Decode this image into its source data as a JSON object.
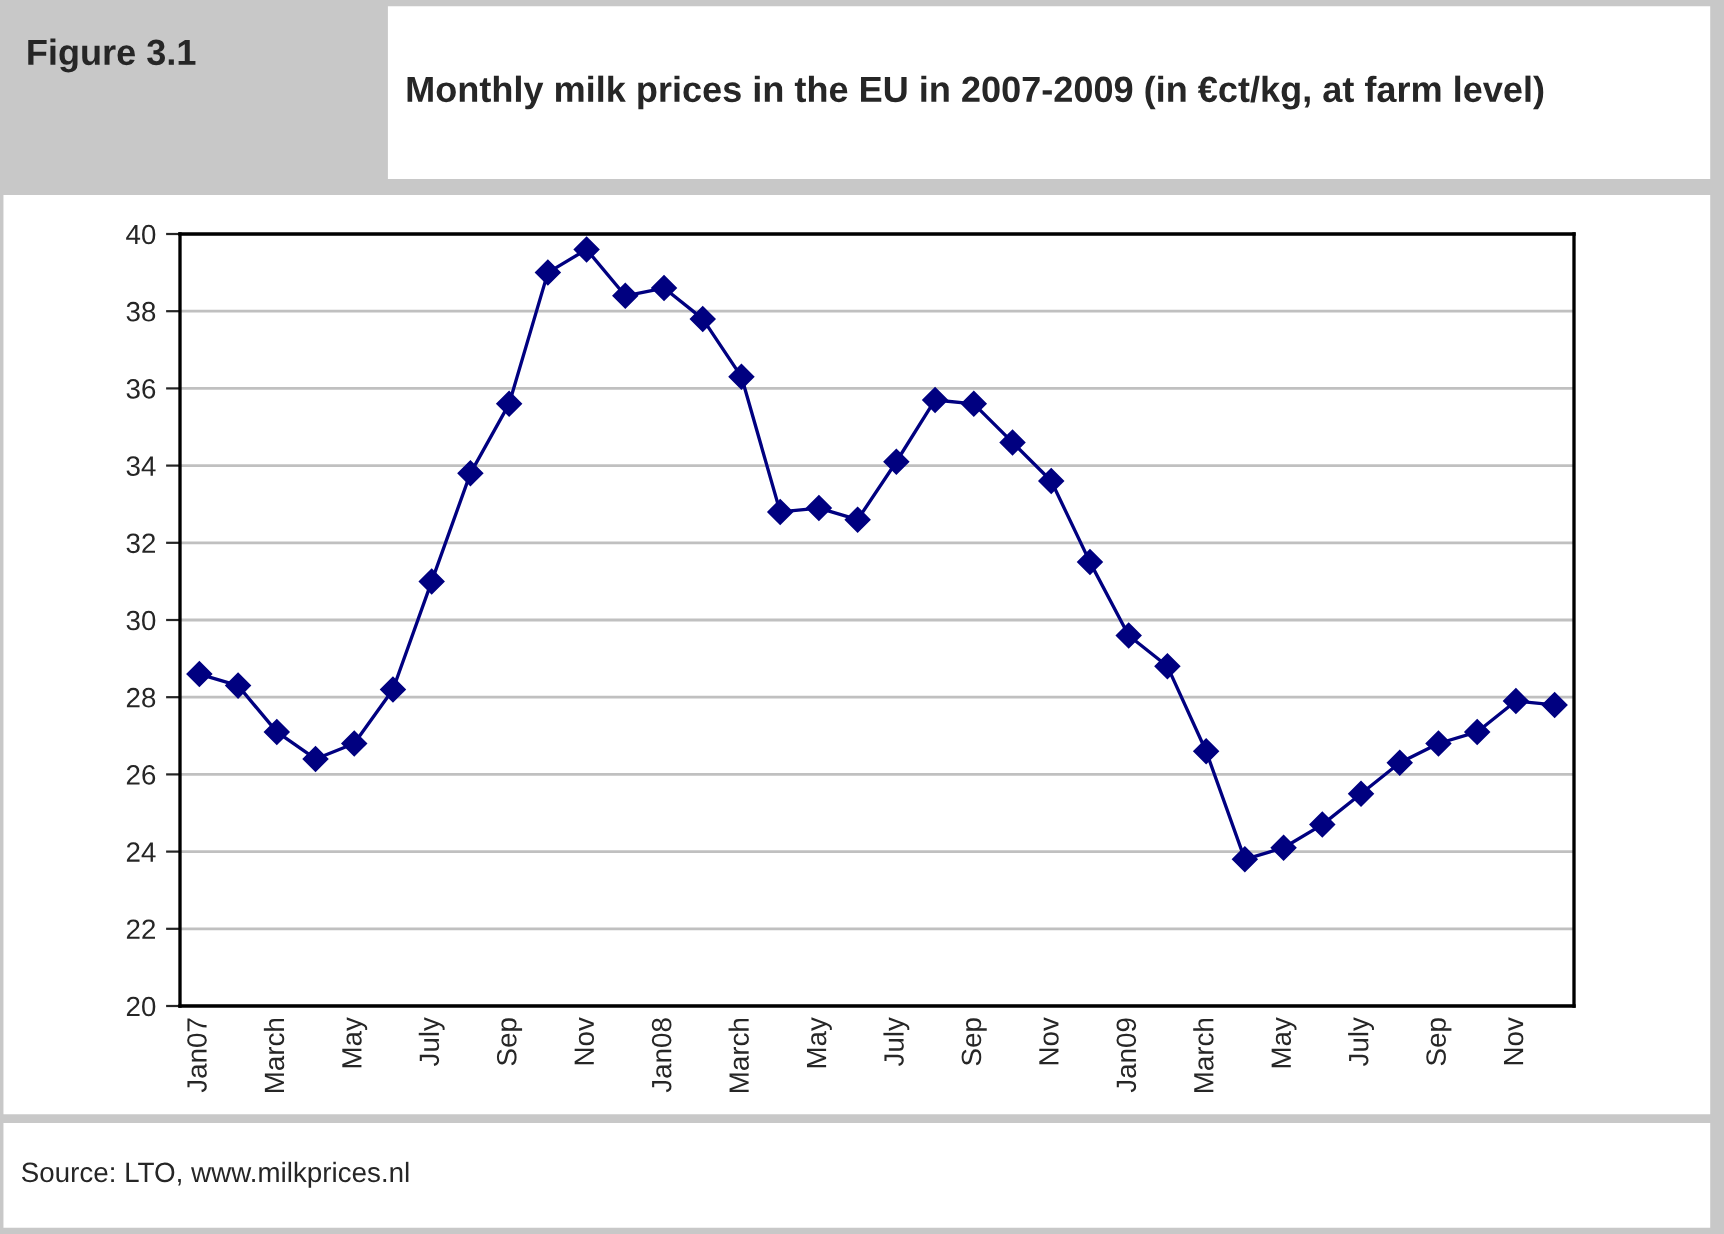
{
  "chart_data": {
    "type": "line",
    "title": "Monthly milk prices in the EU in 2007-2009 (in €ct/kg, at farm level)",
    "annotations": [
      "Figure 3.1",
      "Source: LTO, www.milkprices.nl"
    ],
    "categories": [
      "Jan07",
      null,
      "March",
      null,
      "May",
      null,
      "July",
      null,
      "Sep",
      null,
      "Nov",
      null,
      "Jan08",
      null,
      "March",
      null,
      "May",
      null,
      "July",
      null,
      "Sep",
      null,
      "Nov",
      null,
      "Jan09",
      null,
      "March",
      null,
      "May",
      null,
      "July",
      null,
      "Sep",
      null,
      "Nov",
      null
    ],
    "series": [
      {
        "color": "#000080",
        "values": [
          28.6,
          28.3,
          27.1,
          26.4,
          26.8,
          28.2,
          31.0,
          33.8,
          35.6,
          39.0,
          39.6,
          38.4,
          38.6,
          37.8,
          36.3,
          32.8,
          32.9,
          32.6,
          34.1,
          35.7,
          35.6,
          34.6,
          33.6,
          31.5,
          29.6,
          28.8,
          26.6,
          23.8,
          24.1,
          24.7,
          25.5,
          26.3,
          26.8,
          27.1,
          27.9,
          27.8
        ]
      }
    ],
    "ylim": [
      20,
      40
    ],
    "yticks": [
      20,
      22,
      24,
      26,
      28,
      30,
      32,
      34,
      36,
      38,
      40
    ],
    "grid": "y",
    "marker": "diamond",
    "line_style": "solid",
    "legend": false
  }
}
